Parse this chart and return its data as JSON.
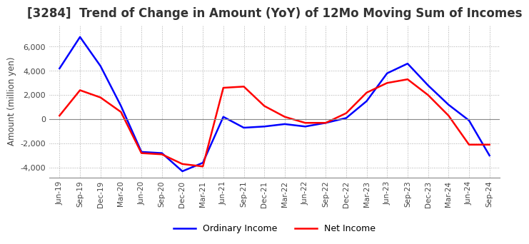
{
  "title": "[3284]  Trend of Change in Amount (YoY) of 12Mo Moving Sum of Incomes",
  "ylabel": "Amount (million yen)",
  "ylim": [
    -4800,
    7800
  ],
  "yticks": [
    -4000,
    -2000,
    0,
    2000,
    4000,
    6000
  ],
  "x_labels": [
    "Jun-19",
    "Sep-19",
    "Dec-19",
    "Mar-20",
    "Jun-20",
    "Sep-20",
    "Dec-20",
    "Mar-21",
    "Jun-21",
    "Sep-21",
    "Dec-21",
    "Mar-22",
    "Jun-22",
    "Sep-22",
    "Dec-22",
    "Mar-23",
    "Jun-23",
    "Sep-23",
    "Dec-23",
    "Mar-24",
    "Jun-24",
    "Sep-24"
  ],
  "ordinary_income": [
    4200,
    6800,
    4400,
    1100,
    -2700,
    -2800,
    -4300,
    -3600,
    200,
    -700,
    -600,
    -400,
    -600,
    -300,
    100,
    1500,
    3800,
    4600,
    2800,
    1200,
    -100,
    -3000
  ],
  "net_income": [
    300,
    2400,
    1800,
    600,
    -2800,
    -2900,
    -3700,
    -3900,
    2600,
    2700,
    1100,
    200,
    -300,
    -300,
    500,
    2200,
    3000,
    3300,
    2000,
    300,
    -2100,
    -2100
  ],
  "ordinary_color": "#0000FF",
  "net_color": "#FF0000",
  "background_color": "#FFFFFF",
  "grid_color": "#AAAAAA",
  "title_fontsize": 12,
  "legend_labels": [
    "Ordinary Income",
    "Net Income"
  ]
}
